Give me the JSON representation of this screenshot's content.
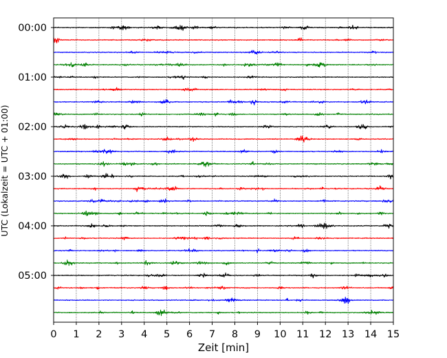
{
  "chart_data": {
    "type": "line",
    "xlabel": "Zeit  [min]",
    "ylabel": "UTC (Lokalzeit = UTC + 01:00)",
    "xlim": [
      0,
      15
    ],
    "x_ticks": [
      0,
      1,
      2,
      3,
      4,
      5,
      6,
      7,
      8,
      9,
      10,
      11,
      12,
      13,
      14,
      15
    ],
    "y_tick_labels": [
      "00:00",
      "01:00",
      "02:00",
      "03:00",
      "04:00",
      "05:00"
    ],
    "y_tick_label_trace_index": [
      0,
      4,
      8,
      12,
      16,
      20
    ],
    "trace_interval_minutes": 15,
    "trace_count": 24,
    "trace_colors": [
      "#000000",
      "#ff0000",
      "#0000ff",
      "#008000"
    ],
    "grid": "vertical dotted at each minute",
    "legend": "none"
  }
}
